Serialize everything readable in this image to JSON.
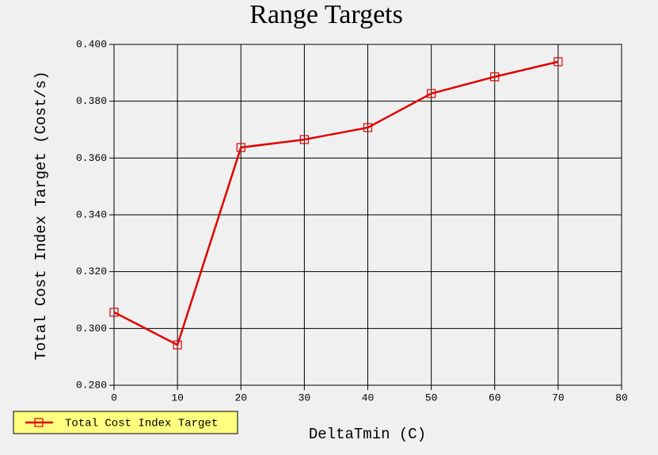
{
  "chart_data": {
    "type": "line",
    "title": "Range Targets",
    "x_label": "DeltaTmin (C)",
    "y_label": "Total Cost Index Target (Cost/s)",
    "x": [
      0,
      10,
      20,
      30,
      40,
      50,
      60,
      70
    ],
    "series": [
      {
        "name": "Total Cost Index Target",
        "color": "#e00000",
        "values": [
          0.3057,
          0.2942,
          0.3637,
          0.3665,
          0.3707,
          0.3827,
          0.3886,
          0.3939
        ]
      }
    ],
    "xlim": [
      0,
      80
    ],
    "xticks": [
      0,
      10,
      20,
      30,
      40,
      50,
      60,
      70,
      80
    ],
    "ylim": [
      0.28,
      0.4
    ],
    "yticks": [
      {
        "value": 0.28,
        "label": "0.280"
      },
      {
        "value": 0.3,
        "label": "0.300"
      },
      {
        "value": 0.32,
        "label": "0.320"
      },
      {
        "value": 0.34,
        "label": "0.340"
      },
      {
        "value": 0.36,
        "label": "0.360"
      },
      {
        "value": 0.38,
        "label": "0.380"
      },
      {
        "value": 0.4,
        "label": "0.400"
      }
    ],
    "grid": true,
    "legend": "bottom-left",
    "legend_background": "#ffff80"
  }
}
